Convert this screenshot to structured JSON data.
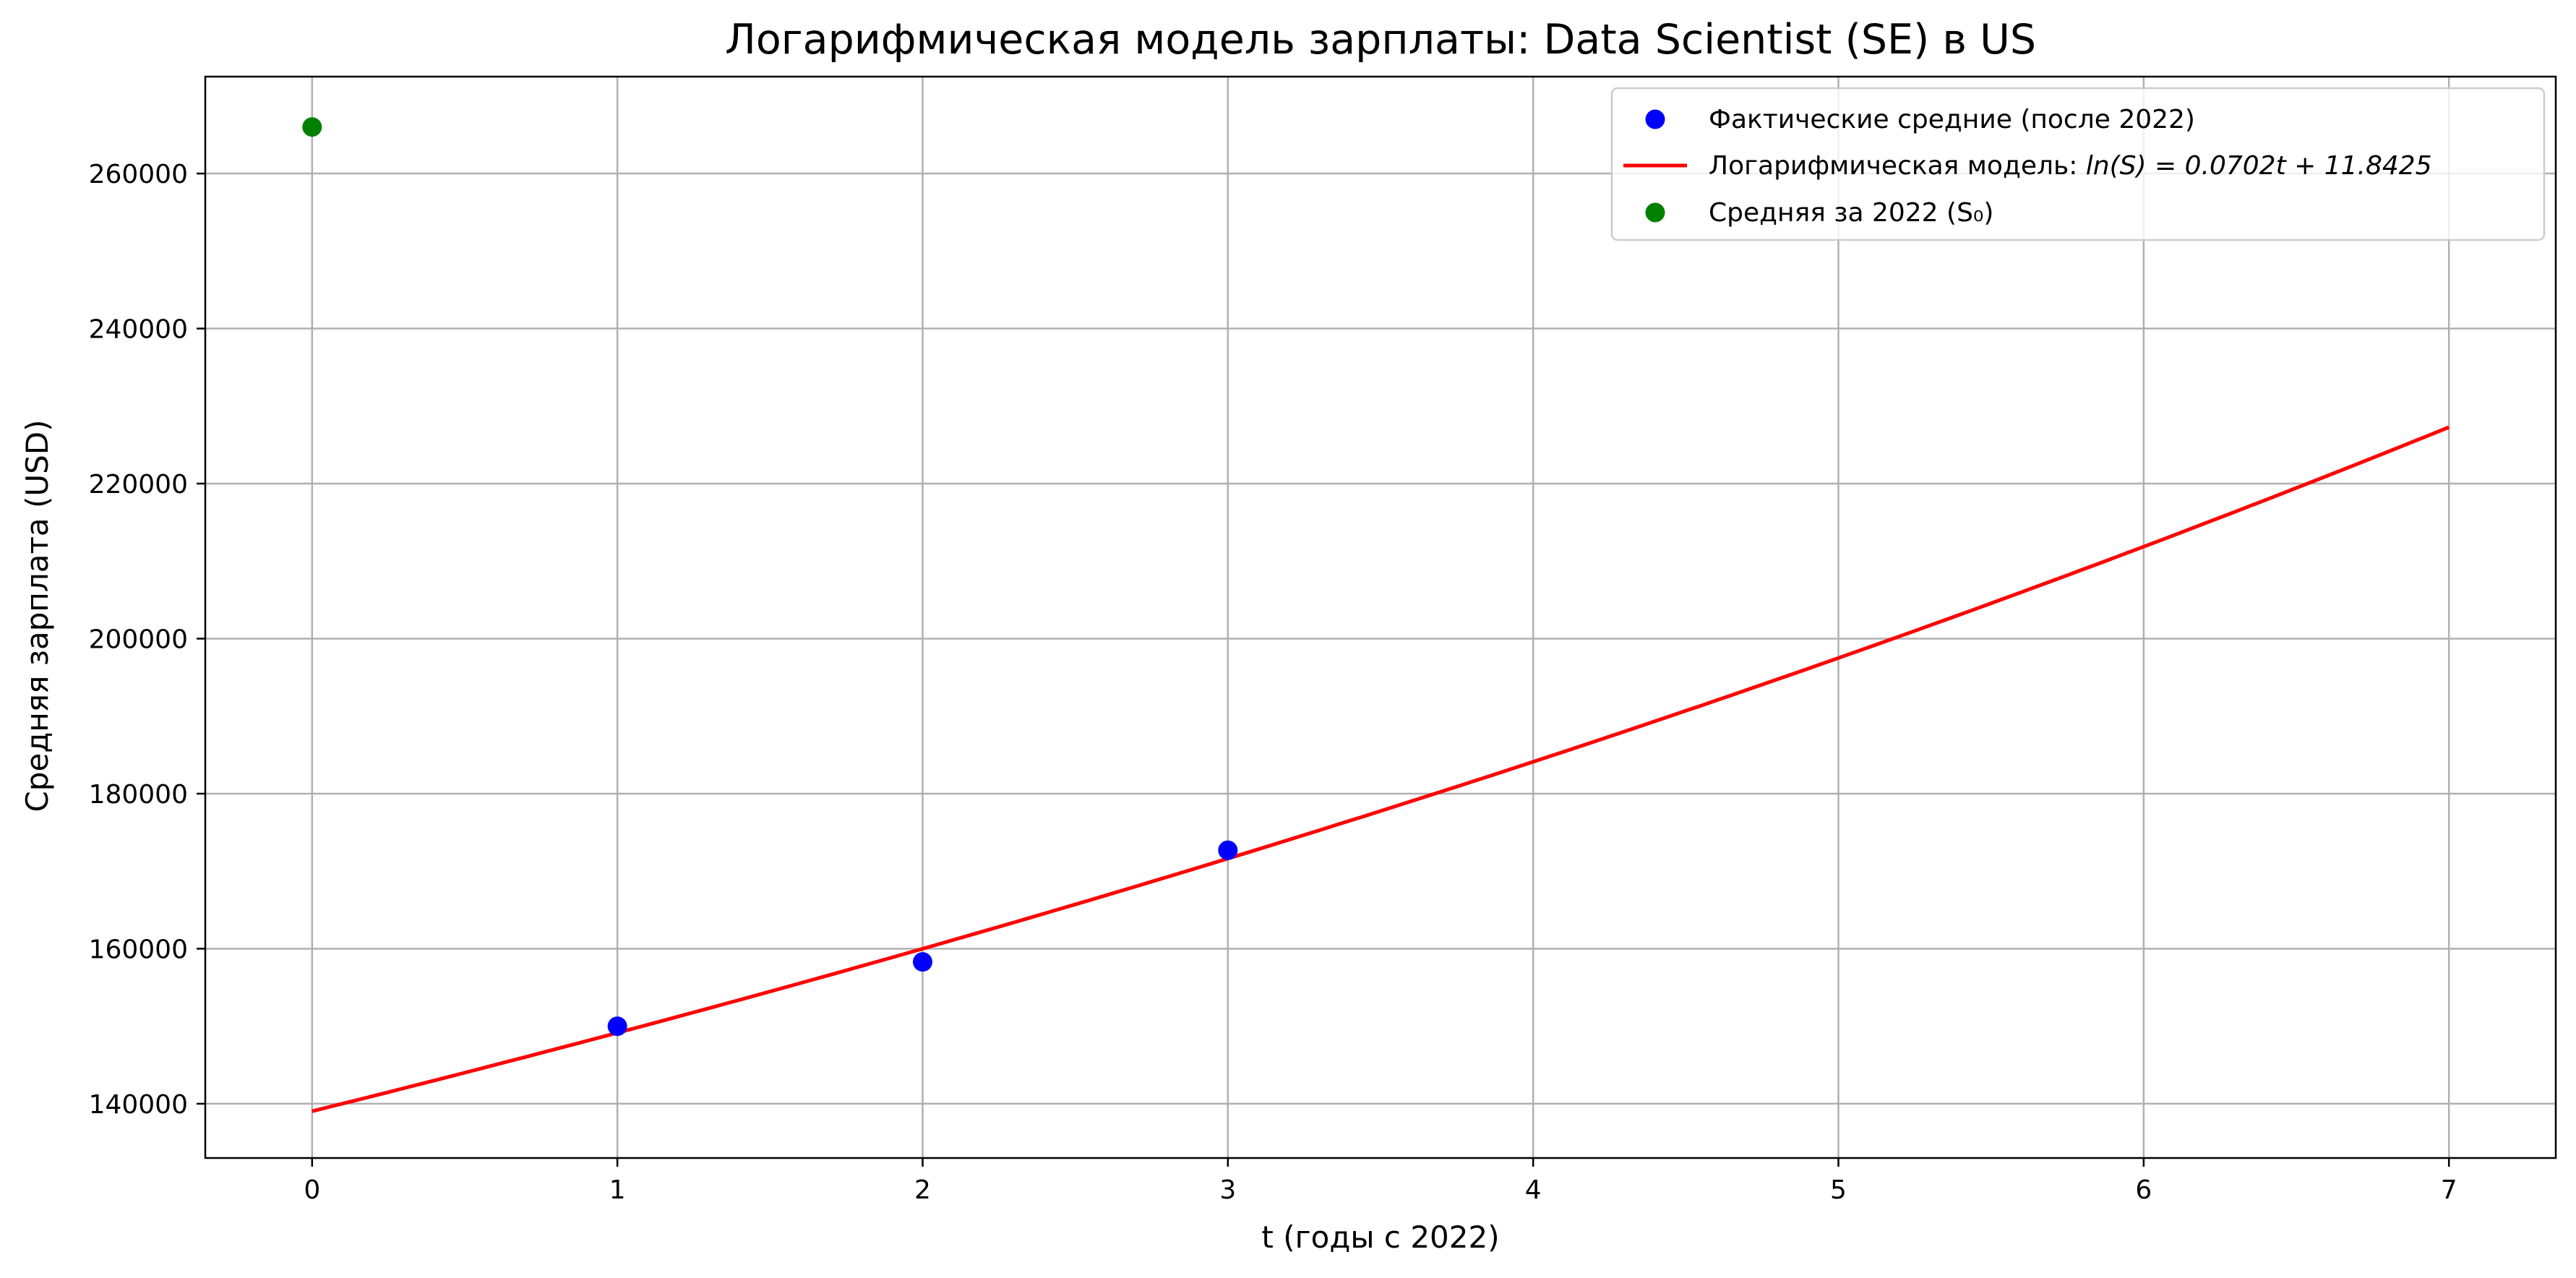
{
  "chart_data": {
    "type": "scatter",
    "title": "Логарифмическая модель зарплаты: Data Scientist (SE) в US",
    "xlabel": "t (годы с 2022)",
    "ylabel": "Средняя зарплата (USD)",
    "xlim": [
      -0.35,
      7.35
    ],
    "ylim": [
      133000,
      272500
    ],
    "x_ticks": [
      0,
      1,
      2,
      3,
      4,
      5,
      6,
      7
    ],
    "y_ticks": [
      140000,
      160000,
      180000,
      200000,
      220000,
      240000,
      260000
    ],
    "grid": true,
    "legend_position": "top-right",
    "series": [
      {
        "name": "Фактические средние (после 2022)",
        "kind": "scatter",
        "color": "#0000ff",
        "points": [
          {
            "x": 1,
            "y": 150000
          },
          {
            "x": 2,
            "y": 158300
          },
          {
            "x": 3,
            "y": 172700
          }
        ]
      },
      {
        "name": "Логарифмическая модель: ln(S) = 0.0702t + 11.8425",
        "legend_prefix": "Логарифмическая модель: ",
        "legend_math": "ln(S) = 0.0702t + 11.8425",
        "kind": "line",
        "color": "#ff0000",
        "slope": 0.0702,
        "intercept": 11.8425,
        "x_range": [
          0,
          7
        ]
      },
      {
        "name": "Средняя за 2022 (S₀)",
        "kind": "scatter",
        "color": "#008000",
        "points": [
          {
            "x": 0,
            "y": 266000
          }
        ]
      }
    ]
  }
}
